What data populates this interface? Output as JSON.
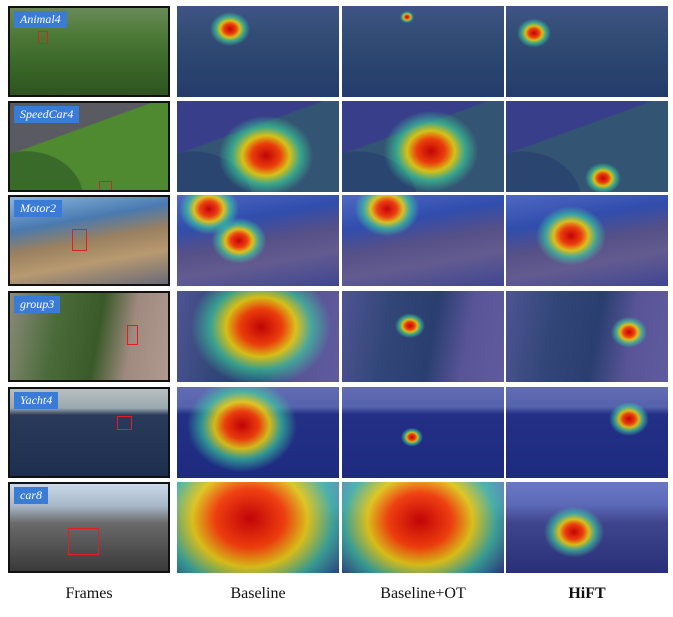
{
  "rows": [
    {
      "label": "Animal4"
    },
    {
      "label": "SpeedCar4"
    },
    {
      "label": "Motor2"
    },
    {
      "label": "group3"
    },
    {
      "label": "Yacht4"
    },
    {
      "label": "car8"
    }
  ],
  "columns": [
    "Frames",
    "Baseline",
    "Baseline+OT",
    "HiFT"
  ]
}
